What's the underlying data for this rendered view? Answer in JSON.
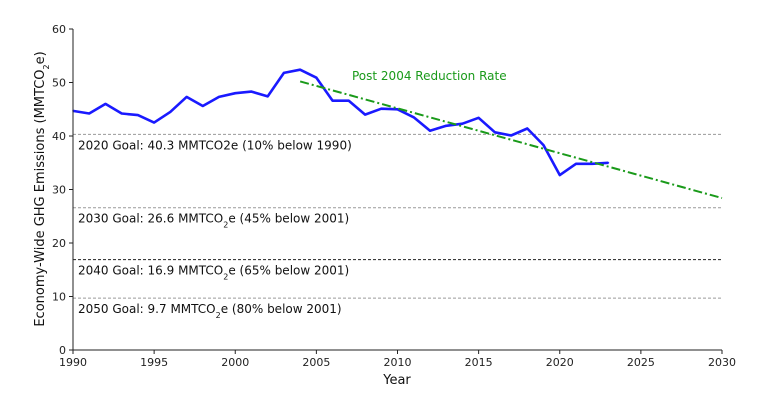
{
  "chart_data": {
    "type": "line",
    "title": "",
    "xlabel": "Year",
    "ylabel_parts": [
      "Economy-Wide GHG Emissions (MMTCO",
      "2",
      "e)"
    ],
    "xlim": [
      1990,
      2030
    ],
    "ylim": [
      0,
      60
    ],
    "x_ticks": [
      1990,
      1995,
      2000,
      2005,
      2010,
      2015,
      2020,
      2025,
      2030
    ],
    "y_ticks": [
      0,
      10,
      20,
      30,
      40,
      50,
      60
    ],
    "grid": false,
    "series": [
      {
        "color": "#1a1aff",
        "x": [
          1990,
          1991,
          1992,
          1993,
          1994,
          1995,
          1996,
          1997,
          1998,
          1999,
          2000,
          2001,
          2002,
          2003,
          2004,
          2005,
          2006,
          2007,
          2008,
          2009,
          2010,
          2011,
          2012,
          2013,
          2014,
          2015,
          2016,
          2017,
          2018,
          2019,
          2020,
          2021,
          2022,
          2023
        ],
        "y": [
          44.7,
          44.2,
          46.0,
          44.2,
          43.9,
          42.5,
          44.5,
          47.3,
          45.6,
          47.3,
          48.0,
          48.3,
          47.4,
          51.8,
          52.4,
          50.9,
          46.6,
          46.6,
          44.0,
          45.1,
          45.0,
          43.5,
          41.0,
          41.9,
          42.3,
          43.4,
          40.7,
          40.1,
          41.4,
          38.3,
          32.7,
          34.8,
          34.8,
          35.0
        ]
      }
    ],
    "trend": {
      "label": "Post 2004 Reduction Rate",
      "color": "#1a9a1a",
      "x": [
        2004,
        2030
      ],
      "y": [
        50.2,
        28.4
      ]
    },
    "goal_lines": [
      {
        "y": 40.3,
        "style": "dashed-gray",
        "label_parts": [
          "2020 Goal: 40.3 MMTCO2e (10% below 1990)"
        ]
      },
      {
        "y": 26.6,
        "style": "dashed-gray",
        "label_parts": [
          "2030 Goal: 26.6 MMTCO",
          "2",
          "e (45% below 2001)"
        ]
      },
      {
        "y": 16.9,
        "style": "dashed-black",
        "label_parts": [
          "2040 Goal: 16.9 MMTCO",
          "2",
          "e (65% below 2001)"
        ]
      },
      {
        "y": 9.7,
        "style": "dashed-gray",
        "label_parts": [
          "2050 Goal: 9.7 MMTCO",
          "2",
          "e (80% below 2001)"
        ]
      }
    ]
  }
}
